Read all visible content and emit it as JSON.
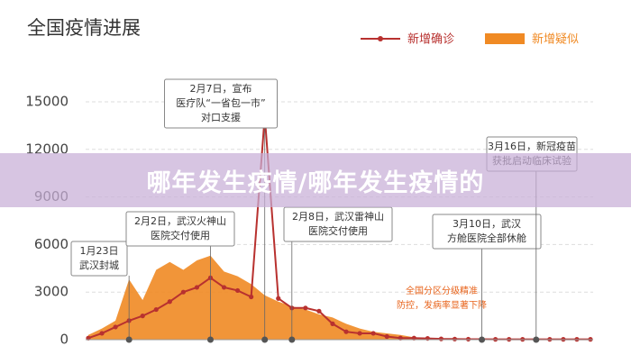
{
  "chart_data": {
    "type": "line",
    "title": "全国疫情进展",
    "categories": [
      null,
      null,
      null,
      null,
      null,
      null,
      null,
      null,
      null,
      null,
      null,
      null,
      null,
      null,
      null,
      null,
      null,
      null,
      null,
      null,
      null,
      null,
      null,
      null,
      null,
      null,
      null,
      null,
      null,
      null,
      null,
      null,
      null,
      null,
      null,
      null,
      null,
      null
    ],
    "series": [
      {
        "name": "新增确诊",
        "color": "#b8312f",
        "type": "line",
        "values": [
          100,
          400,
          800,
          1200,
          1500,
          1900,
          2400,
          3000,
          3300,
          3900,
          3300,
          3100,
          2700,
          14100,
          2600,
          2000,
          2000,
          1800,
          1000,
          500,
          400,
          400,
          200,
          100,
          100,
          80,
          50,
          40,
          30,
          30,
          20,
          20,
          20,
          20,
          20,
          20,
          20,
          20
        ]
      },
      {
        "name": "新增疑似",
        "color": "#f08a24",
        "type": "area",
        "values": [
          300,
          700,
          1200,
          3800,
          2500,
          4400,
          4900,
          4400,
          5000,
          5300,
          4300,
          4000,
          3500,
          2800,
          2400,
          2100,
          1900,
          1600,
          1400,
          1000,
          700,
          500,
          400,
          300,
          150,
          100,
          80,
          60,
          50,
          40,
          30,
          30,
          20,
          20,
          20,
          20,
          20,
          20
        ]
      }
    ],
    "ylim": [
      0,
      15000
    ],
    "yticks": [
      0,
      3000,
      6000,
      9000,
      12000,
      15000
    ],
    "grid": true,
    "annotations": [
      {
        "lines": [
          "1月23日",
          "武汉封城"
        ]
      },
      {
        "lines": [
          "2月2日，武汉火神山",
          "医院交付使用"
        ]
      },
      {
        "lines": [
          "2月7日，宣布",
          "医疗队“一省包一市”",
          "对口支援"
        ]
      },
      {
        "lines": [
          "2月8日，武汉雷神山",
          "医院交付使用"
        ]
      },
      {
        "lines": [
          "全国分区分级精准",
          "防控，发病率显著下降"
        ]
      },
      {
        "lines": [
          "3月10日，武汉",
          "方舱医院全部休舱"
        ]
      },
      {
        "lines": [
          "3月16日，新冠疫苗",
          "获批启动临床试验"
        ]
      }
    ]
  },
  "banner": "哪年发生疫情/哪年发生疫情的"
}
